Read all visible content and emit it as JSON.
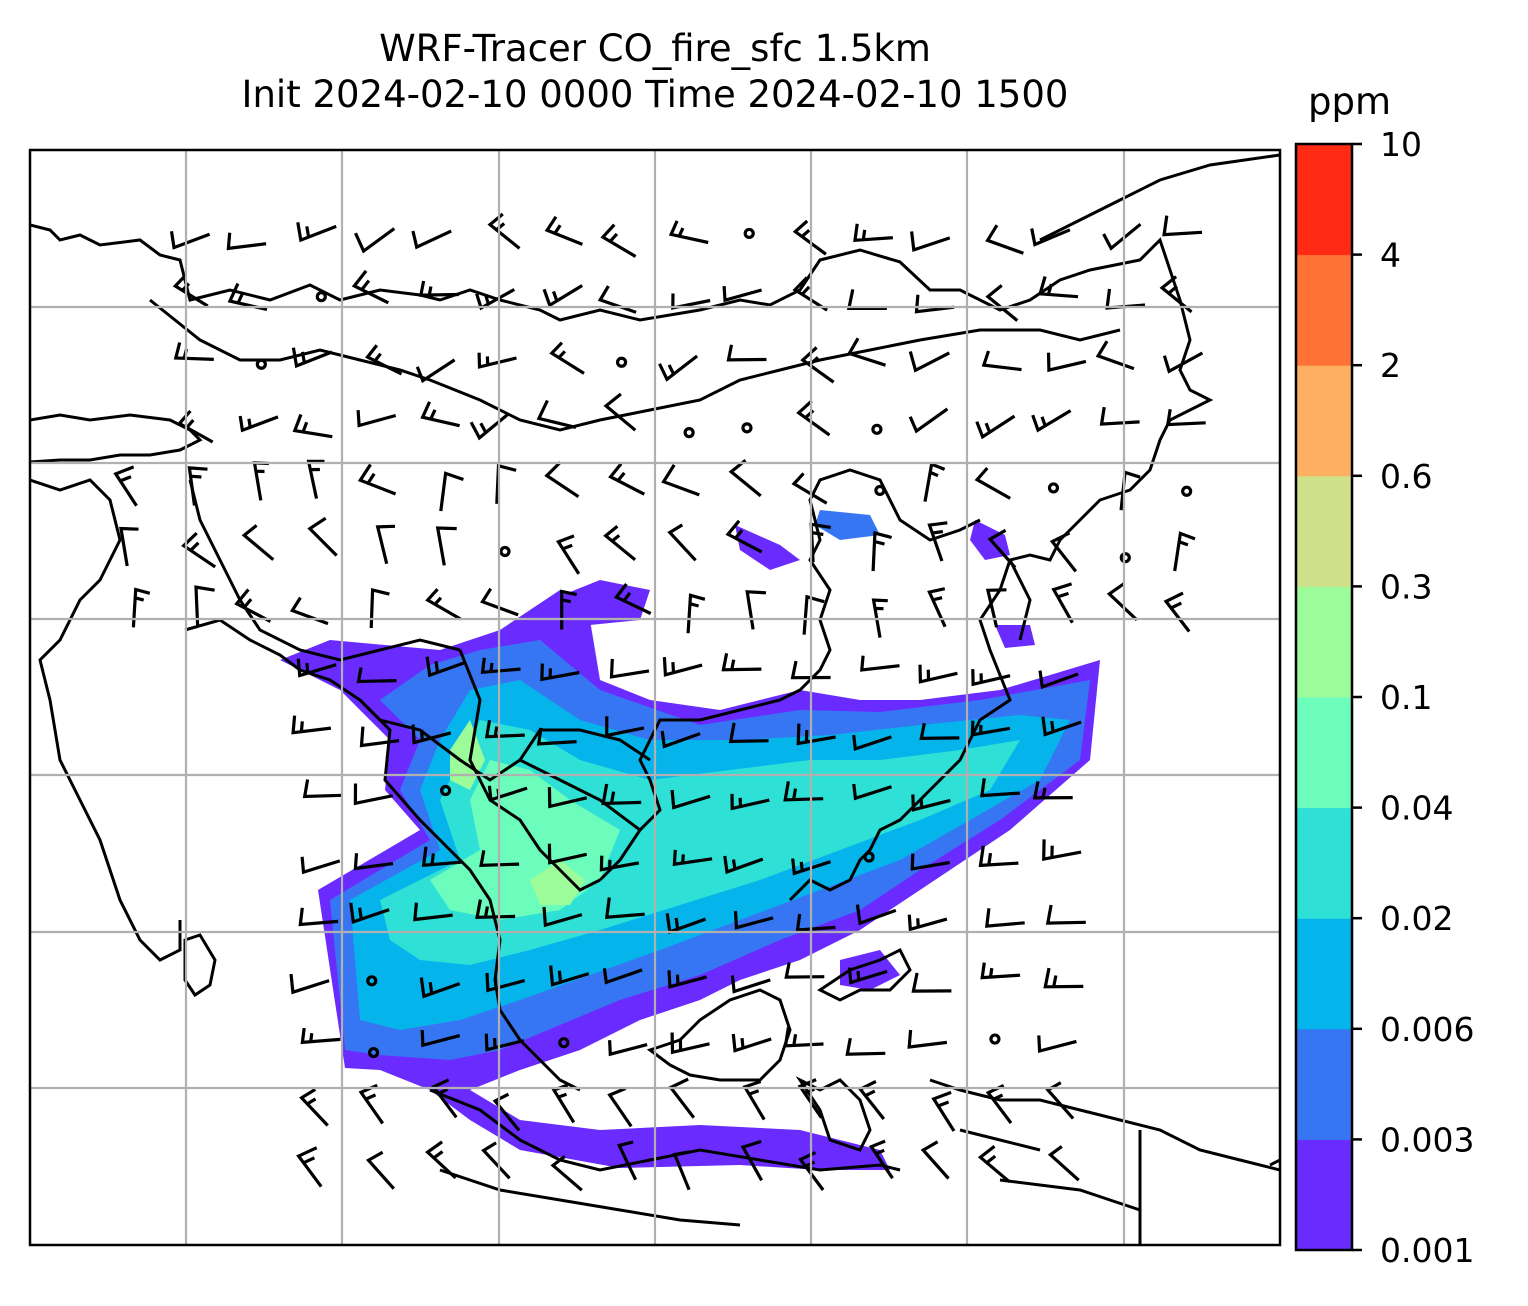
{
  "chart_data": {
    "type": "heatmap",
    "title": "WRF-Tracer CO_fire_sfc 1.5km",
    "subtitle": "Init 2024-02-10 0000 Time 2024-02-10 1500",
    "colorbar": {
      "unit": "ppm",
      "tick_labels": [
        "0.001",
        "0.003",
        "0.006",
        "0.02",
        "0.04",
        "0.1",
        "0.3",
        "0.6",
        "2",
        "4",
        "10"
      ],
      "levels": [
        0.001,
        0.003,
        0.006,
        0.02,
        0.04,
        0.1,
        0.3,
        0.6,
        2,
        4,
        10
      ],
      "colors": [
        "#6a2bff",
        "#3676f2",
        "#06b4ec",
        "#2ee0d6",
        "#6cfcbc",
        "#9dfc9a",
        "#cfe08a",
        "#fdb061",
        "#ff7236",
        "#ff2b14"
      ]
    },
    "grid": true,
    "overlays": [
      "coastlines",
      "country borders",
      "wind barbs"
    ]
  }
}
